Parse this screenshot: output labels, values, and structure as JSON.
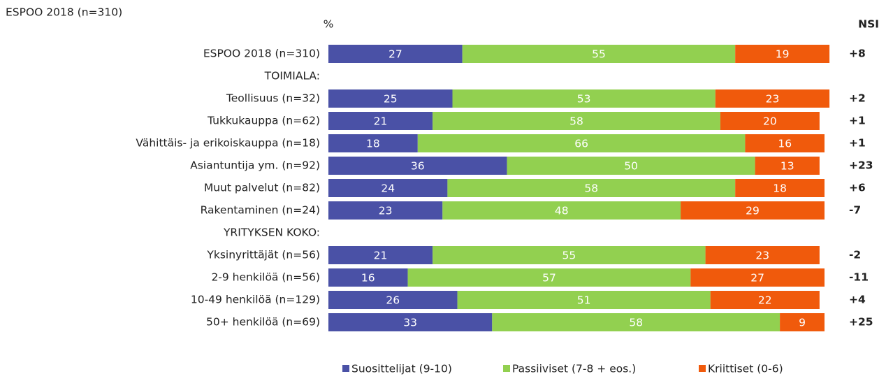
{
  "chart_data": {
    "type": "stacked-barh",
    "title": "ESPOO 2018 (n=310)",
    "unit_label": "%",
    "nsi_header": "NSI",
    "categories": [
      "ESPOO 2018 (n=310)",
      "TOIMIALA:",
      "Teollisuus (n=32)",
      "Tukkukauppa (n=62)",
      "Vähittäis- ja erikoiskauppa (n=18)",
      "Asiantuntija ym. (n=92)",
      "Muut palvelut (n=82)",
      "Rakentaminen (n=24)",
      "YRITYKSEN KOKO:",
      "Yksinyrittäjät (n=56)",
      "2-9 henkilöä (n=56)",
      "10-49 henkilöä (n=129)",
      "50+ henkilöä (n=69)"
    ],
    "series": [
      {
        "name": "Suosittelijat (9-10)",
        "color": "#4a51a6",
        "values": [
          27,
          null,
          25,
          21,
          18,
          36,
          24,
          23,
          null,
          21,
          16,
          26,
          33
        ]
      },
      {
        "name": "Passiiviset (7-8 + eos.)",
        "color": "#92d050",
        "values": [
          55,
          null,
          53,
          58,
          66,
          50,
          58,
          48,
          null,
          55,
          57,
          51,
          58
        ]
      },
      {
        "name": "Kriittiset (0-6)",
        "color": "#f05a0c",
        "values": [
          19,
          null,
          23,
          20,
          16,
          13,
          18,
          29,
          null,
          23,
          27,
          22,
          9
        ]
      }
    ],
    "nsi": [
      "+8",
      null,
      "+2",
      "+1",
      "+1",
      "+23",
      "+6",
      "-7",
      null,
      "-2",
      "-11",
      "+4",
      "+25"
    ],
    "xlim": [
      0,
      100
    ]
  }
}
